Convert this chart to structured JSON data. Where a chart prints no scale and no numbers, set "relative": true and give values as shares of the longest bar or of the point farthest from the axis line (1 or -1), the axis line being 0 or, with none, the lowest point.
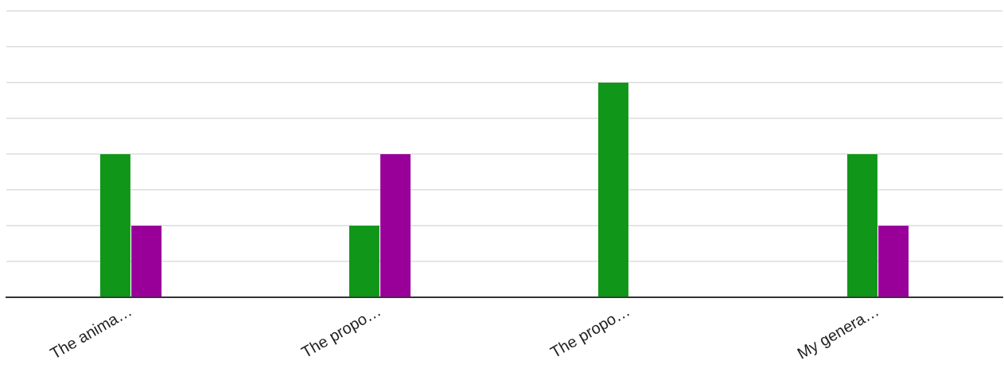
{
  "chart_data": {
    "type": "bar",
    "relative": true,
    "grid": "y",
    "legend": false,
    "categories": [
      "The anima…",
      "The propo…",
      "The propo…",
      "My genera…"
    ],
    "series": [
      {
        "color": "#109618",
        "values": [
          0.667,
          0.333,
          1,
          0.667
        ]
      },
      {
        "color": "#990099",
        "values": [
          0.333,
          0.667,
          0,
          0.333
        ]
      }
    ]
  }
}
